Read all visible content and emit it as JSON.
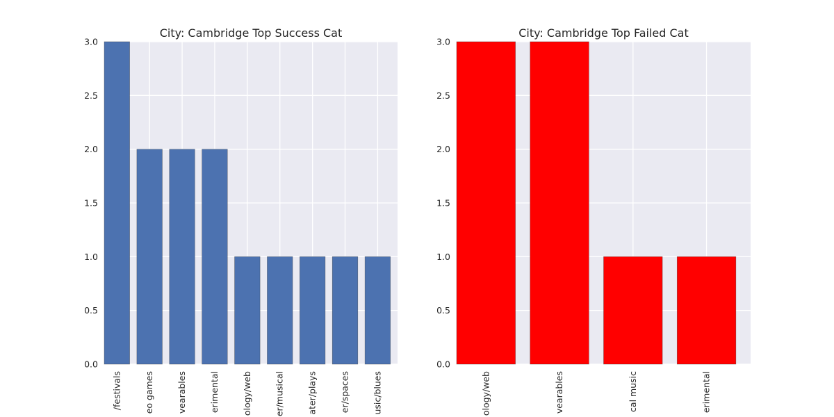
{
  "chart_data": [
    {
      "type": "bar",
      "title": "City: Cambridge Top Success Cat",
      "categories": [
        "film & video/festivals",
        "games/video games",
        "technology/wearables",
        "music/experimental",
        "technology/web",
        "theater/musical",
        "theater/plays",
        "theater/spaces",
        "music/blues"
      ],
      "tick_labels": [
        "/festivals",
        "eo games",
        "vearables",
        "erimental",
        "ology/web",
        "er/musical",
        "ater/plays",
        "er/spaces",
        "usic/blues"
      ],
      "values": [
        3,
        2,
        2,
        2,
        1,
        1,
        1,
        1,
        1
      ],
      "ylim": [
        0,
        3
      ],
      "yticks": [
        "0.0",
        "0.5",
        "1.0",
        "1.5",
        "2.0",
        "2.5",
        "3.0"
      ],
      "color": "#4c72b0",
      "grid": true,
      "background": "#eaeaf2"
    },
    {
      "type": "bar",
      "title": "City: Cambridge Top Failed Cat",
      "categories": [
        "technology/web",
        "technology/wearables",
        "music/classical music",
        "music/experimental"
      ],
      "tick_labels": [
        "ology/web",
        "vearables",
        "cal music",
        "erimental"
      ],
      "values": [
        3,
        3,
        1,
        1
      ],
      "ylim": [
        0,
        3
      ],
      "yticks": [
        "0.0",
        "0.5",
        "1.0",
        "1.5",
        "2.0",
        "2.5",
        "3.0"
      ],
      "color": "#ff0000",
      "grid": true,
      "background": "#eaeaf2"
    }
  ]
}
